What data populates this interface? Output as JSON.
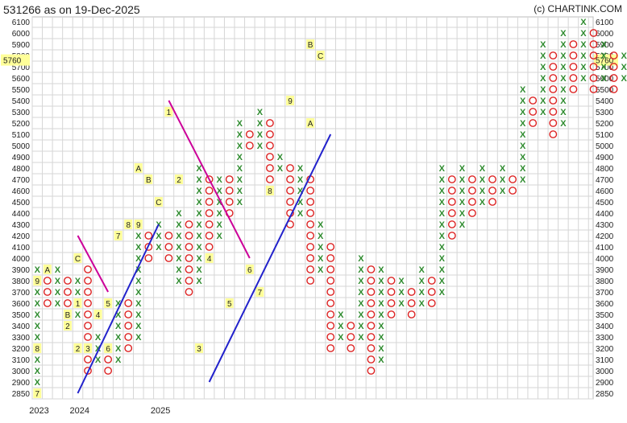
{
  "header": {
    "title": "531266 as on 19-Dec-2025",
    "credit": "(c) CHARTINK.COM"
  },
  "chart_data": {
    "type": "point-and-figure",
    "price_levels": [
      2850,
      2900,
      3000,
      3100,
      3200,
      3300,
      3400,
      3500,
      3600,
      3700,
      3800,
      3900,
      4000,
      4100,
      4200,
      4300,
      4400,
      4500,
      4600,
      4700,
      4800,
      4900,
      5000,
      5100,
      5200,
      5300,
      5400,
      5500,
      5600,
      5700,
      5800,
      5900,
      6000,
      6100
    ],
    "current_price": "5760",
    "year_labels": [
      {
        "col": 0,
        "label": "2023"
      },
      {
        "col": 4,
        "label": "2024"
      },
      {
        "col": 12,
        "label": "2025"
      }
    ],
    "columns": [
      {
        "t": "X",
        "lo": 2850,
        "hi": 3900
      },
      {
        "t": "O",
        "lo": 3600,
        "hi": 3800
      },
      {
        "t": "X",
        "lo": 3600,
        "hi": 3900
      },
      {
        "t": "O",
        "lo": 3400,
        "hi": 3800
      },
      {
        "t": "X",
        "lo": 3500,
        "hi": 3800
      },
      {
        "t": "O",
        "lo": 3000,
        "hi": 3900
      },
      {
        "t": "X",
        "lo": 3100,
        "hi": 3300
      },
      {
        "t": "O",
        "lo": 3000,
        "hi": 3200
      },
      {
        "t": "X",
        "lo": 3100,
        "hi": 3600
      },
      {
        "t": "O",
        "lo": 3200,
        "hi": 3600
      },
      {
        "t": "X",
        "lo": 3300,
        "hi": 4300
      },
      {
        "t": "O",
        "lo": 4000,
        "hi": 4200
      },
      {
        "t": "X",
        "lo": 4100,
        "hi": 4300
      },
      {
        "t": "O",
        "lo": 4000,
        "hi": 4200
      },
      {
        "t": "X",
        "lo": 3800,
        "hi": 4400
      },
      {
        "t": "O",
        "lo": 3700,
        "hi": 4300
      },
      {
        "t": "X",
        "lo": 3800,
        "hi": 4800
      },
      {
        "t": "O",
        "lo": 4100,
        "hi": 4700
      },
      {
        "t": "X",
        "lo": 4200,
        "hi": 4700
      },
      {
        "t": "O",
        "lo": 4400,
        "hi": 4700
      },
      {
        "t": "X",
        "lo": 4500,
        "hi": 5200
      },
      {
        "t": "O",
        "lo": 5000,
        "hi": 5100
      },
      {
        "t": "X",
        "lo": 5000,
        "hi": 5300
      },
      {
        "t": "O",
        "lo": 4700,
        "hi": 5200
      },
      {
        "t": "X",
        "lo": 4800,
        "hi": 4900
      },
      {
        "t": "O",
        "lo": 4300,
        "hi": 4800
      },
      {
        "t": "X",
        "lo": 4400,
        "hi": 4800
      },
      {
        "t": "O",
        "lo": 3800,
        "hi": 4700
      },
      {
        "t": "X",
        "lo": 3900,
        "hi": 4300
      },
      {
        "t": "O",
        "lo": 3200,
        "hi": 4100
      },
      {
        "t": "X",
        "lo": 3300,
        "hi": 3500
      },
      {
        "t": "O",
        "lo": 3200,
        "hi": 3400
      },
      {
        "t": "X",
        "lo": 3300,
        "hi": 4000
      },
      {
        "t": "O",
        "lo": 3000,
        "hi": 3900
      },
      {
        "t": "X",
        "lo": 3100,
        "hi": 3900
      },
      {
        "t": "O",
        "lo": 3500,
        "hi": 3800
      },
      {
        "t": "X",
        "lo": 3600,
        "hi": 3800
      },
      {
        "t": "O",
        "lo": 3500,
        "hi": 3700
      },
      {
        "t": "X",
        "lo": 3600,
        "hi": 3900
      },
      {
        "t": "O",
        "lo": 3600,
        "hi": 3800
      },
      {
        "t": "X",
        "lo": 3700,
        "hi": 4800
      },
      {
        "t": "O",
        "lo": 4200,
        "hi": 4700
      },
      {
        "t": "X",
        "lo": 4300,
        "hi": 4800
      },
      {
        "t": "O",
        "lo": 4400,
        "hi": 4700
      },
      {
        "t": "X",
        "lo": 4500,
        "hi": 4800
      },
      {
        "t": "O",
        "lo": 4500,
        "hi": 4700
      },
      {
        "t": "X",
        "lo": 4600,
        "hi": 4800
      },
      {
        "t": "O",
        "lo": 4600,
        "hi": 4700
      },
      {
        "t": "X",
        "lo": 4700,
        "hi": 5500
      },
      {
        "t": "O",
        "lo": 5200,
        "hi": 5400
      },
      {
        "t": "X",
        "lo": 5300,
        "hi": 5900
      },
      {
        "t": "O",
        "lo": 5100,
        "hi": 5800
      },
      {
        "t": "X",
        "lo": 5200,
        "hi": 6000
      },
      {
        "t": "O",
        "lo": 5500,
        "hi": 5900
      },
      {
        "t": "X",
        "lo": 5600,
        "hi": 6100
      },
      {
        "t": "O",
        "lo": 5500,
        "hi": 6000
      },
      {
        "t": "X",
        "lo": 5600,
        "hi": 5900
      },
      {
        "t": "O",
        "lo": 5500,
        "hi": 5800
      },
      {
        "t": "X",
        "lo": 5600,
        "hi": 5800
      },
      {
        "t": "O",
        "lo": 5300,
        "hi": 5700
      },
      {
        "t": "X",
        "lo": 5400,
        "hi": 5700
      },
      {
        "t": "O",
        "lo": 5600,
        "hi": 5700
      },
      {
        "t": "X",
        "lo": 5600,
        "hi": 5800
      }
    ],
    "month_markers": [
      {
        "col": 0,
        "price": 2850,
        "label": "7"
      },
      {
        "col": 0,
        "price": 3200,
        "label": "8"
      },
      {
        "col": 0,
        "price": 3800,
        "label": "9"
      },
      {
        "col": 1,
        "price": 3900,
        "label": "A"
      },
      {
        "col": 3,
        "price": 3500,
        "label": "B"
      },
      {
        "col": 4,
        "price": 4000,
        "label": "C"
      },
      {
        "col": 4,
        "price": 3600,
        "label": "1"
      },
      {
        "col": 3,
        "price": 3400,
        "label": "2"
      },
      {
        "col": 4,
        "price": 3200,
        "label": "2"
      },
      {
        "col": 5,
        "price": 3200,
        "label": "3"
      },
      {
        "col": 6,
        "price": 3500,
        "label": "4"
      },
      {
        "col": 7,
        "price": 3600,
        "label": "5"
      },
      {
        "col": 7,
        "price": 3200,
        "label": "6"
      },
      {
        "col": 8,
        "price": 4200,
        "label": "7"
      },
      {
        "col": 9,
        "price": 4300,
        "label": "8"
      },
      {
        "col": 10,
        "price": 4300,
        "label": "9"
      },
      {
        "col": 10,
        "price": 4800,
        "label": "A"
      },
      {
        "col": 11,
        "price": 4700,
        "label": "B"
      },
      {
        "col": 12,
        "price": 4500,
        "label": "C"
      },
      {
        "col": 13,
        "price": 5300,
        "label": "1"
      },
      {
        "col": 14,
        "price": 4700,
        "label": "2"
      },
      {
        "col": 16,
        "price": 3200,
        "label": "3"
      },
      {
        "col": 17,
        "price": 4000,
        "label": "4"
      },
      {
        "col": 19,
        "price": 3600,
        "label": "5"
      },
      {
        "col": 21,
        "price": 3900,
        "label": "6"
      },
      {
        "col": 22,
        "price": 3700,
        "label": "7"
      },
      {
        "col": 23,
        "price": 4600,
        "label": "8"
      },
      {
        "col": 25,
        "price": 5400,
        "label": "9"
      },
      {
        "col": 27,
        "price": 5200,
        "label": "A"
      },
      {
        "col": 27,
        "price": 5900,
        "label": "B"
      },
      {
        "col": 28,
        "price": 5800,
        "label": "C"
      }
    ],
    "trendlines": [
      {
        "kind": "resistance",
        "color": "#cc0099",
        "from": {
          "col": 4,
          "price": 4200
        },
        "to": {
          "col": 7,
          "price": 3700
        }
      },
      {
        "kind": "resistance",
        "color": "#cc0099",
        "from": {
          "col": 13,
          "price": 5400
        },
        "to": {
          "col": 21,
          "price": 4000
        }
      },
      {
        "kind": "support",
        "color": "#2222cc",
        "from": {
          "col": 4,
          "price": 2850
        },
        "to": {
          "col": 12,
          "price": 4300
        }
      },
      {
        "kind": "support",
        "color": "#2222cc",
        "from": {
          "col": 17,
          "price": 2900
        },
        "to": {
          "col": 29,
          "price": 5100
        }
      }
    ]
  }
}
